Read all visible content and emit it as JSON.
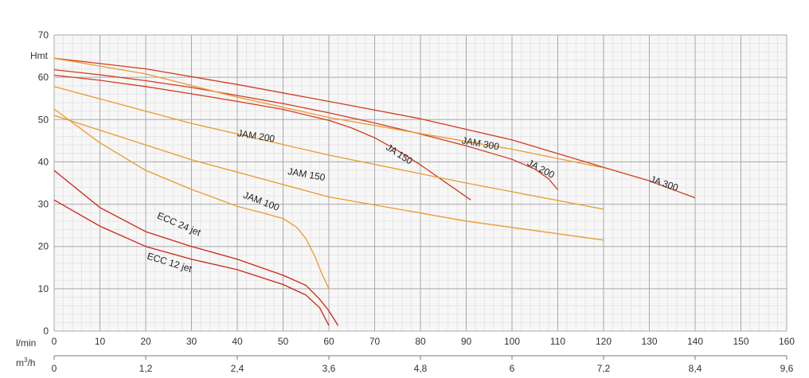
{
  "chart_data": {
    "type": "line",
    "ylabel": "Hmt",
    "xlabel": "l/min",
    "x2label_base": "m",
    "x2label_sup": "3",
    "x2label_tail": "/h",
    "xlim": [
      0,
      160
    ],
    "ylim": [
      0,
      70
    ],
    "grid": true,
    "y_ticks": [
      "0",
      "10",
      "20",
      "30",
      "40",
      "50",
      "60",
      "70"
    ],
    "x_ticks": [
      "0",
      "10",
      "20",
      "30",
      "40",
      "50",
      "60",
      "70",
      "80",
      "90",
      "100",
      "110",
      "120",
      "130",
      "140",
      "150",
      "160"
    ],
    "x2_ticks": [
      "0",
      "1,2",
      "2,4",
      "3,6",
      "4,8",
      "6",
      "7,2",
      "8,4",
      "9,6"
    ],
    "colors": {
      "ja": "#d63a1f",
      "jam": "#eb9a2c",
      "ecc": "#cf2412",
      "grid_major": "#a8a8a8",
      "grid_minor": "#e6e6e6",
      "plot_bg": "#f7f7f7"
    },
    "series": [
      {
        "name": "JA 150",
        "family": "ja",
        "x": [
          0,
          10,
          20,
          30,
          40,
          50,
          60,
          65,
          70,
          75,
          80,
          85,
          91
        ],
        "y": [
          60.5,
          59.3,
          57.8,
          56.1,
          54.3,
          52.4,
          49.8,
          48.0,
          45.7,
          42.7,
          39.3,
          35.5,
          31.0
        ]
      },
      {
        "name": "JA 200",
        "family": "ja",
        "x": [
          0,
          10,
          20,
          30,
          40,
          50,
          60,
          70,
          80,
          90,
          100,
          105,
          108,
          110
        ],
        "y": [
          61.8,
          60.6,
          59.2,
          57.6,
          55.7,
          53.8,
          51.6,
          49.2,
          46.6,
          43.8,
          40.6,
          38.3,
          36.0,
          33.4
        ]
      },
      {
        "name": "JA 300",
        "family": "ja",
        "x": [
          0,
          20,
          40,
          60,
          80,
          100,
          120,
          130,
          140
        ],
        "y": [
          64.5,
          62.0,
          58.3,
          54.3,
          50.2,
          45.2,
          38.7,
          35.5,
          31.5
        ]
      },
      {
        "name": "JAM 300",
        "family": "jam",
        "x": [
          0,
          20,
          40,
          60,
          80,
          100,
          120
        ],
        "y": [
          64.5,
          60.8,
          55.3,
          50.5,
          46.7,
          43.0,
          38.6
        ]
      },
      {
        "name": "JAM 200",
        "family": "jam",
        "x": [
          0,
          30,
          60,
          90,
          120
        ],
        "y": [
          57.8,
          49.1,
          41.6,
          35.0,
          28.8
        ]
      },
      {
        "name": "JAM 150",
        "family": "jam",
        "x": [
          0,
          30,
          60,
          90,
          120
        ],
        "y": [
          51.0,
          40.5,
          31.7,
          26.0,
          21.5
        ]
      },
      {
        "name": "JAM 100",
        "family": "jam",
        "x": [
          0,
          5,
          10,
          20,
          30,
          40,
          46,
          50,
          53,
          55,
          57,
          58.5,
          60
        ],
        "y": [
          52.5,
          48.5,
          44.5,
          38.0,
          33.5,
          29.5,
          27.8,
          26.6,
          24.5,
          21.8,
          17.5,
          13.5,
          10.0
        ]
      },
      {
        "name": "ECC 24 jet",
        "family": "ecc",
        "x": [
          0,
          10,
          20,
          30,
          40,
          50,
          55,
          58,
          60,
          62
        ],
        "y": [
          38.0,
          29.2,
          23.5,
          20.0,
          17.0,
          13.2,
          10.8,
          7.5,
          4.8,
          1.3
        ]
      },
      {
        "name": "ECC 12 jet",
        "family": "ecc",
        "x": [
          0,
          10,
          20,
          30,
          40,
          50,
          55,
          58,
          60
        ],
        "y": [
          31.0,
          24.8,
          20.0,
          17.0,
          14.5,
          11.0,
          8.5,
          5.5,
          1.3
        ]
      }
    ],
    "annotations": [
      {
        "text": "JA 150",
        "x": 75,
        "y": 41.2,
        "angle": 33
      },
      {
        "text": "JA 200",
        "x": 106,
        "y": 37.7,
        "angle": 28
      },
      {
        "text": "JA 300",
        "x": 133,
        "y": 34.2,
        "angle": 19
      },
      {
        "text": "JAM 300",
        "x": 93,
        "y": 43.6,
        "angle": 10
      },
      {
        "text": "JAM 200",
        "x": 44,
        "y": 45.4,
        "angle": 9
      },
      {
        "text": "JAM 150",
        "x": 55,
        "y": 36.3,
        "angle": 10
      },
      {
        "text": "JAM 100",
        "x": 45,
        "y": 30.0,
        "angle": 21
      },
      {
        "text": "ECC 24 jet",
        "x": 27,
        "y": 24.6,
        "angle": 23
      },
      {
        "text": "ECC 12 jet",
        "x": 25,
        "y": 15.5,
        "angle": 17
      }
    ]
  }
}
